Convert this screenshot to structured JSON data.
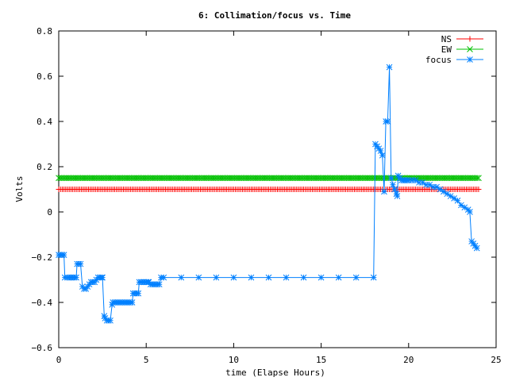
{
  "chart_data": {
    "type": "line",
    "title": "6: Collimation/focus vs. Time",
    "xlabel": "time (Elapse Hours)",
    "ylabel": "Volts",
    "xlim": [
      0,
      25
    ],
    "ylim": [
      -0.6,
      0.8
    ],
    "xticks": [
      0,
      5,
      10,
      15,
      20,
      25
    ],
    "yticks": [
      -0.6,
      -0.4,
      -0.2,
      0,
      0.2,
      0.4,
      0.6,
      0.8
    ],
    "grid": false,
    "legend_position": "top-right",
    "series": [
      {
        "name": "NS",
        "color": "#ff0000",
        "marker": "plus",
        "x_range": [
          0,
          24
        ],
        "x_step": 0.1,
        "constant_y": 0.1
      },
      {
        "name": "EW",
        "color": "#00c000",
        "marker": "cross",
        "x_range": [
          0,
          24
        ],
        "x_step": 0.1,
        "constant_y": 0.15
      },
      {
        "name": "focus",
        "color": "#0080ff",
        "marker": "star",
        "points": [
          [
            0.0,
            -0.19
          ],
          [
            0.1,
            -0.19
          ],
          [
            0.2,
            -0.19
          ],
          [
            0.3,
            -0.19
          ],
          [
            0.35,
            -0.29
          ],
          [
            0.5,
            -0.29
          ],
          [
            0.6,
            -0.29
          ],
          [
            0.7,
            -0.29
          ],
          [
            0.8,
            -0.29
          ],
          [
            0.9,
            -0.29
          ],
          [
            1.0,
            -0.29
          ],
          [
            1.05,
            -0.23
          ],
          [
            1.15,
            -0.23
          ],
          [
            1.25,
            -0.23
          ],
          [
            1.35,
            -0.33
          ],
          [
            1.45,
            -0.34
          ],
          [
            1.55,
            -0.34
          ],
          [
            1.65,
            -0.33
          ],
          [
            1.75,
            -0.32
          ],
          [
            1.85,
            -0.31
          ],
          [
            1.95,
            -0.31
          ],
          [
            2.05,
            -0.31
          ],
          [
            2.15,
            -0.3
          ],
          [
            2.25,
            -0.29
          ],
          [
            2.35,
            -0.29
          ],
          [
            2.45,
            -0.29
          ],
          [
            2.5,
            -0.29
          ],
          [
            2.6,
            -0.46
          ],
          [
            2.65,
            -0.47
          ],
          [
            2.75,
            -0.48
          ],
          [
            2.85,
            -0.48
          ],
          [
            2.95,
            -0.48
          ],
          [
            3.05,
            -0.41
          ],
          [
            3.1,
            -0.4
          ],
          [
            3.2,
            -0.4
          ],
          [
            3.3,
            -0.4
          ],
          [
            3.4,
            -0.4
          ],
          [
            3.5,
            -0.4
          ],
          [
            3.6,
            -0.4
          ],
          [
            3.7,
            -0.4
          ],
          [
            3.8,
            -0.4
          ],
          [
            3.9,
            -0.4
          ],
          [
            4.0,
            -0.4
          ],
          [
            4.1,
            -0.4
          ],
          [
            4.2,
            -0.4
          ],
          [
            4.25,
            -0.36
          ],
          [
            4.35,
            -0.36
          ],
          [
            4.45,
            -0.36
          ],
          [
            4.55,
            -0.36
          ],
          [
            4.6,
            -0.31
          ],
          [
            4.7,
            -0.31
          ],
          [
            4.8,
            -0.31
          ],
          [
            4.9,
            -0.31
          ],
          [
            5.0,
            -0.31
          ],
          [
            5.1,
            -0.31
          ],
          [
            5.15,
            -0.31
          ],
          [
            5.25,
            -0.32
          ],
          [
            5.35,
            -0.32
          ],
          [
            5.45,
            -0.32
          ],
          [
            5.55,
            -0.32
          ],
          [
            5.65,
            -0.32
          ],
          [
            5.75,
            -0.32
          ],
          [
            5.85,
            -0.29
          ],
          [
            6.0,
            -0.29
          ],
          [
            7.0,
            -0.29
          ],
          [
            8.0,
            -0.29
          ],
          [
            9.0,
            -0.29
          ],
          [
            10.0,
            -0.29
          ],
          [
            11.0,
            -0.29
          ],
          [
            12.0,
            -0.29
          ],
          [
            13.0,
            -0.29
          ],
          [
            14.0,
            -0.29
          ],
          [
            15.0,
            -0.29
          ],
          [
            16.0,
            -0.29
          ],
          [
            17.0,
            -0.29
          ],
          [
            18.0,
            -0.29
          ],
          [
            18.1,
            0.3
          ],
          [
            18.2,
            0.29
          ],
          [
            18.3,
            0.28
          ],
          [
            18.4,
            0.27
          ],
          [
            18.5,
            0.25
          ],
          [
            18.6,
            0.09
          ],
          [
            18.7,
            0.4
          ],
          [
            18.8,
            0.4
          ],
          [
            18.9,
            0.64
          ],
          [
            19.0,
            0.15
          ],
          [
            19.1,
            0.12
          ],
          [
            19.2,
            0.1
          ],
          [
            19.3,
            0.08
          ],
          [
            19.35,
            0.07
          ],
          [
            19.4,
            0.16
          ],
          [
            19.5,
            0.15
          ],
          [
            19.6,
            0.14
          ],
          [
            19.7,
            0.14
          ],
          [
            19.8,
            0.14
          ],
          [
            19.9,
            0.14
          ],
          [
            20.0,
            0.14
          ],
          [
            20.2,
            0.14
          ],
          [
            20.4,
            0.14
          ],
          [
            20.6,
            0.13
          ],
          [
            20.8,
            0.13
          ],
          [
            21.0,
            0.12
          ],
          [
            21.2,
            0.12
          ],
          [
            21.4,
            0.11
          ],
          [
            21.6,
            0.11
          ],
          [
            21.8,
            0.1
          ],
          [
            22.0,
            0.09
          ],
          [
            22.2,
            0.08
          ],
          [
            22.4,
            0.07
          ],
          [
            22.6,
            0.06
          ],
          [
            22.8,
            0.05
          ],
          [
            23.0,
            0.03
          ],
          [
            23.2,
            0.02
          ],
          [
            23.4,
            0.01
          ],
          [
            23.5,
            0.0
          ],
          [
            23.6,
            -0.13
          ],
          [
            23.7,
            -0.14
          ],
          [
            23.8,
            -0.15
          ],
          [
            23.9,
            -0.16
          ]
        ]
      }
    ]
  }
}
